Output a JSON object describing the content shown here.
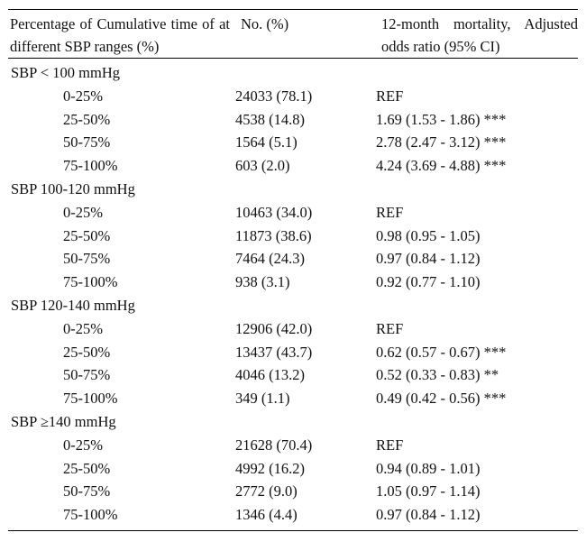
{
  "header": {
    "col1": "Percentage of Cumulative time of at different SBP ranges (%)",
    "col2": "No. (%)",
    "col3": "12-month mortality, Adjusted odds ratio (95% CI)"
  },
  "groups": [
    {
      "label": "SBP < 100 mmHg",
      "rows": [
        {
          "range": "0-25%",
          "n": "24033 (78.1)",
          "or": "REF"
        },
        {
          "range": "25-50%",
          "n": "4538 (14.8)",
          "or": "1.69 (1.53 - 1.86) ***"
        },
        {
          "range": "50-75%",
          "n": "1564 (5.1)",
          "or": "2.78 (2.47 - 3.12) ***"
        },
        {
          "range": "75-100%",
          "n": "603 (2.0)",
          "or": "4.24 (3.69 - 4.88) ***"
        }
      ]
    },
    {
      "label": "SBP 100-120 mmHg",
      "rows": [
        {
          "range": "0-25%",
          "n": "10463 (34.0)",
          "or": "REF"
        },
        {
          "range": "25-50%",
          "n": "11873 (38.6)",
          "or": "0.98 (0.95 - 1.05)"
        },
        {
          "range": "50-75%",
          "n": "7464 (24.3)",
          "or": "0.97 (0.84 - 1.12)"
        },
        {
          "range": "75-100%",
          "n": "938 (3.1)",
          "or": "0.92 (0.77 - 1.10)"
        }
      ]
    },
    {
      "label": "SBP 120-140 mmHg",
      "rows": [
        {
          "range": "0-25%",
          "n": "12906 (42.0)",
          "or": "REF"
        },
        {
          "range": "25-50%",
          "n": "13437 (43.7)",
          "or": "0.62 (0.57 - 0.67) ***"
        },
        {
          "range": "50-75%",
          "n": "4046 (13.2)",
          "or": "0.52 (0.33 - 0.83) **"
        },
        {
          "range": "75-100%",
          "n": "349 (1.1)",
          "or": "0.49 (0.42 - 0.56) ***"
        }
      ]
    },
    {
      "label": "SBP ≥140 mmHg",
      "rows": [
        {
          "range": "0-25%",
          "n": "21628 (70.4)",
          "or": "REF"
        },
        {
          "range": "25-50%",
          "n": "4992 (16.2)",
          "or": "0.94 (0.89 - 1.01)"
        },
        {
          "range": "50-75%",
          "n": "2772 (9.0)",
          "or": "1.05 (0.97 - 1.14)"
        },
        {
          "range": "75-100%",
          "n": "1346 (4.4)",
          "or": "0.97 (0.84 - 1.12)"
        }
      ]
    }
  ]
}
